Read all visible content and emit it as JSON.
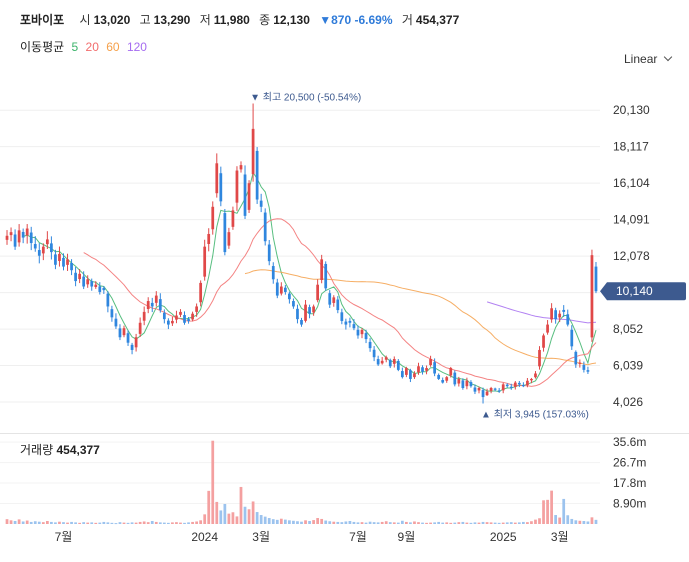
{
  "header": {
    "name": "포바이포",
    "open_label": "시",
    "open": "13,020",
    "high_label": "고",
    "high": "13,290",
    "low_label": "저",
    "low": "11,980",
    "close_label": "종",
    "close": "12,130",
    "change": "▼870 -6.69%",
    "volume_label": "거",
    "volume": "454,377"
  },
  "ma_legend": {
    "label": "이동평균",
    "items": [
      {
        "text": "5",
        "color": "#3bb36a"
      },
      {
        "text": "20",
        "color": "#f26d6d"
      },
      {
        "text": "60",
        "color": "#f5a04a"
      },
      {
        "text": "120",
        "color": "#a56cf0"
      }
    ]
  },
  "scale_select": "Linear",
  "colors": {
    "up": "#e04848",
    "down": "#2f86de",
    "price_badge": "#3d5a8f"
  },
  "volume_panel": {
    "title": "거래량",
    "value": "454,377"
  },
  "chart_data": {
    "type": "candlestick",
    "y_ticks": [
      20130,
      18117,
      16104,
      14091,
      12078,
      10065,
      8052,
      6039,
      4026
    ],
    "y_tick_labels": [
      "20,130",
      "18,117",
      "16,104",
      "14,091",
      "12,078",
      "",
      "8,052",
      "6,039",
      "4,026"
    ],
    "ylim": [
      3200,
      21300
    ],
    "current_price": 10140,
    "current_price_label": "10,140",
    "max_annotation": {
      "text": "최고 20,500 (-50.54%)",
      "value": 20500,
      "index": 61
    },
    "min_annotation": {
      "text": "최저 3,945 (157.03%)",
      "value": 3945,
      "index": 118
    },
    "x_labels": [
      {
        "text": "7월",
        "index": 14
      },
      {
        "text": "2024",
        "index": 49
      },
      {
        "text": "3월",
        "index": 63
      },
      {
        "text": "7월",
        "index": 87
      },
      {
        "text": "9월",
        "index": 99
      },
      {
        "text": "2025",
        "index": 123
      },
      {
        "text": "3월",
        "index": 137
      }
    ],
    "closes": [
      13200,
      13400,
      12600,
      13500,
      13100,
      13600,
      12800,
      12500,
      12100,
      12600,
      13000,
      12300,
      11600,
      12200,
      11500,
      11900,
      11300,
      10700,
      11100,
      10400,
      10800,
      10400,
      10500,
      10100,
      10200,
      9300,
      8700,
      8200,
      7600,
      8100,
      7300,
      6900,
      7600,
      8400,
      9000,
      9600,
      9300,
      9900,
      9100,
      8600,
      8300,
      8500,
      8800,
      9000,
      8400,
      8500,
      8900,
      9300,
      10600,
      12600,
      13300,
      14800,
      17200,
      15100,
      12300,
      13400,
      14600,
      16800,
      17100,
      14300,
      16100,
      19100,
      15200,
      14800,
      12900,
      11800,
      10800,
      9900,
      10400,
      10100,
      9700,
      9300,
      8600,
      8300,
      9400,
      8900,
      9300,
      10500,
      11900,
      10300,
      9400,
      9800,
      9100,
      8500,
      8300,
      8400,
      8100,
      7700,
      8000,
      7500,
      7000,
      6500,
      6100,
      6300,
      6500,
      6000,
      6400,
      5800,
      5400,
      5900,
      5300,
      5600,
      6000,
      5700,
      5900,
      6400,
      5600,
      5300,
      5100,
      5400,
      5900,
      5000,
      5300,
      4800,
      5200,
      4900,
      4600,
      4800,
      4300,
      4600,
      4800,
      4700,
      4600,
      5000,
      4900,
      4800,
      5100,
      5000,
      4900,
      5200,
      5300,
      5600,
      6900,
      7700,
      8300,
      9200,
      8600,
      8900,
      9000,
      8300,
      7100,
      6100,
      6200,
      5800,
      5700,
      12130,
      10140
    ],
    "volume_ticks": [
      35600000,
      26700000,
      17800000,
      8900000
    ],
    "volume_tick_labels": [
      "35.6m",
      "26.7m",
      "17.8m",
      "8.90m"
    ],
    "volumes": [
      2100000,
      1600000,
      1300000,
      2000000,
      1100000,
      1500000,
      900000,
      1200000,
      1000000,
      800000,
      1300000,
      900000,
      700000,
      1000000,
      800000,
      600000,
      900000,
      700000,
      500000,
      800000,
      600000,
      700000,
      500000,
      600000,
      900000,
      700000,
      500000,
      400000,
      800000,
      600000,
      500000,
      700000,
      600000,
      900000,
      1100000,
      800000,
      1300000,
      900000,
      700000,
      600000,
      500000,
      700000,
      800000,
      600000,
      500000,
      700000,
      900000,
      1100000,
      1600000,
      4200000,
      14400000,
      36200000,
      9600000,
      5900000,
      8700000,
      4500000,
      5100000,
      3300000,
      16100000,
      7500000,
      6400000,
      9800000,
      5200000,
      3900000,
      3200000,
      2600000,
      2100000,
      1800000,
      2300000,
      1900000,
      1600000,
      1400000,
      1200000,
      1000000,
      1600000,
      1300000,
      1700000,
      2600000,
      2200000,
      1500000,
      1200000,
      1000000,
      900000,
      800000,
      1100000,
      1300000,
      900000,
      700000,
      800000,
      600000,
      1000000,
      800000,
      700000,
      900000,
      1200000,
      800000,
      700000,
      600000,
      1400000,
      900000,
      700000,
      1100000,
      800000,
      600000,
      500000,
      600000,
      700000,
      900000,
      600000,
      700000,
      500000,
      600000,
      800000,
      900000,
      600000,
      500000,
      700000,
      600000,
      900000,
      800000,
      700000,
      600000,
      500000,
      600000,
      700000,
      800000,
      600000,
      700000,
      900000,
      800000,
      1200000,
      1900000,
      2500000,
      10300000,
      10500000,
      14500000,
      3900000,
      2800000,
      10900000,
      3800000,
      2200000,
      1600000,
      1400000,
      1300000,
      1100000,
      2900000,
      1800000
    ]
  }
}
